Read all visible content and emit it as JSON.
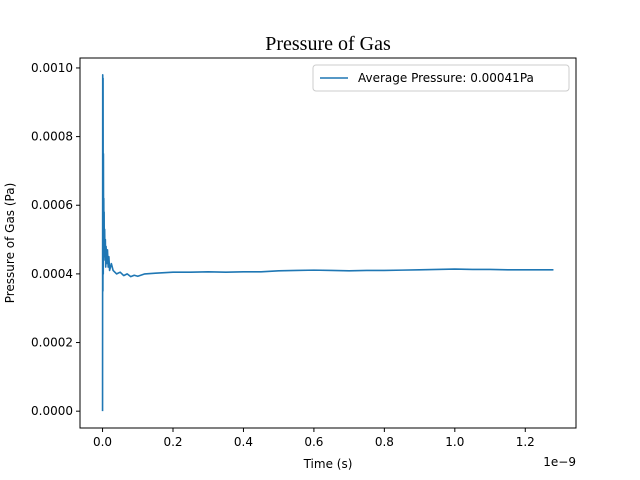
{
  "chart_data": {
    "type": "line",
    "title": "Pressure of Gas",
    "xlabel": "Time (s)",
    "ylabel": "Pressure of Gas (Pa)",
    "x_offset_label": "1e−9",
    "xlim": [
      -0.064,
      1.344
    ],
    "ylim": [
      -4.9e-05,
      0.001029
    ],
    "x_ticks": [
      0.0,
      0.2,
      0.4,
      0.6,
      0.8,
      1.0,
      1.2
    ],
    "x_tick_labels": [
      "0.0",
      "0.2",
      "0.4",
      "0.6",
      "0.8",
      "1.0",
      "1.2"
    ],
    "y_ticks": [
      0.0,
      0.0002,
      0.0004,
      0.0006,
      0.0008,
      0.001
    ],
    "y_tick_labels": [
      "0.0000",
      "0.0002",
      "0.0004",
      "0.0006",
      "0.0008",
      "0.0010"
    ],
    "grid": false,
    "legend_position": "upper-right",
    "series_color": "#1f77b4",
    "series": [
      {
        "name": "Average Pressure: 0.00041Pa",
        "x": [
          0.0,
          0.0005,
          0.001,
          0.0015,
          0.002,
          0.0025,
          0.003,
          0.0035,
          0.004,
          0.0045,
          0.005,
          0.006,
          0.007,
          0.008,
          0.009,
          0.01,
          0.012,
          0.014,
          0.016,
          0.018,
          0.02,
          0.025,
          0.03,
          0.04,
          0.05,
          0.06,
          0.07,
          0.08,
          0.09,
          0.1,
          0.12,
          0.15,
          0.2,
          0.25,
          0.3,
          0.35,
          0.4,
          0.45,
          0.5,
          0.55,
          0.6,
          0.65,
          0.7,
          0.75,
          0.8,
          0.85,
          0.9,
          0.95,
          1.0,
          1.05,
          1.1,
          1.15,
          1.2,
          1.25,
          1.28
        ],
        "y": [
          0.0,
          0.00098,
          0.00035,
          0.00097,
          0.0004,
          0.00075,
          0.00046,
          0.00062,
          0.00047,
          0.00058,
          0.00045,
          0.00053,
          0.00044,
          0.0005,
          0.00042,
          0.00048,
          0.00043,
          0.00047,
          0.00042,
          0.00045,
          0.00041,
          0.00043,
          0.00041,
          0.0004,
          0.000405,
          0.000395,
          0.0004,
          0.000392,
          0.000396,
          0.000393,
          0.0004,
          0.000402,
          0.000405,
          0.000405,
          0.000406,
          0.000405,
          0.000406,
          0.000406,
          0.000409,
          0.00041,
          0.000411,
          0.00041,
          0.000409,
          0.00041,
          0.00041,
          0.000411,
          0.000412,
          0.000413,
          0.000414,
          0.000413,
          0.000413,
          0.000412,
          0.000412,
          0.000412,
          0.000412
        ]
      }
    ]
  }
}
